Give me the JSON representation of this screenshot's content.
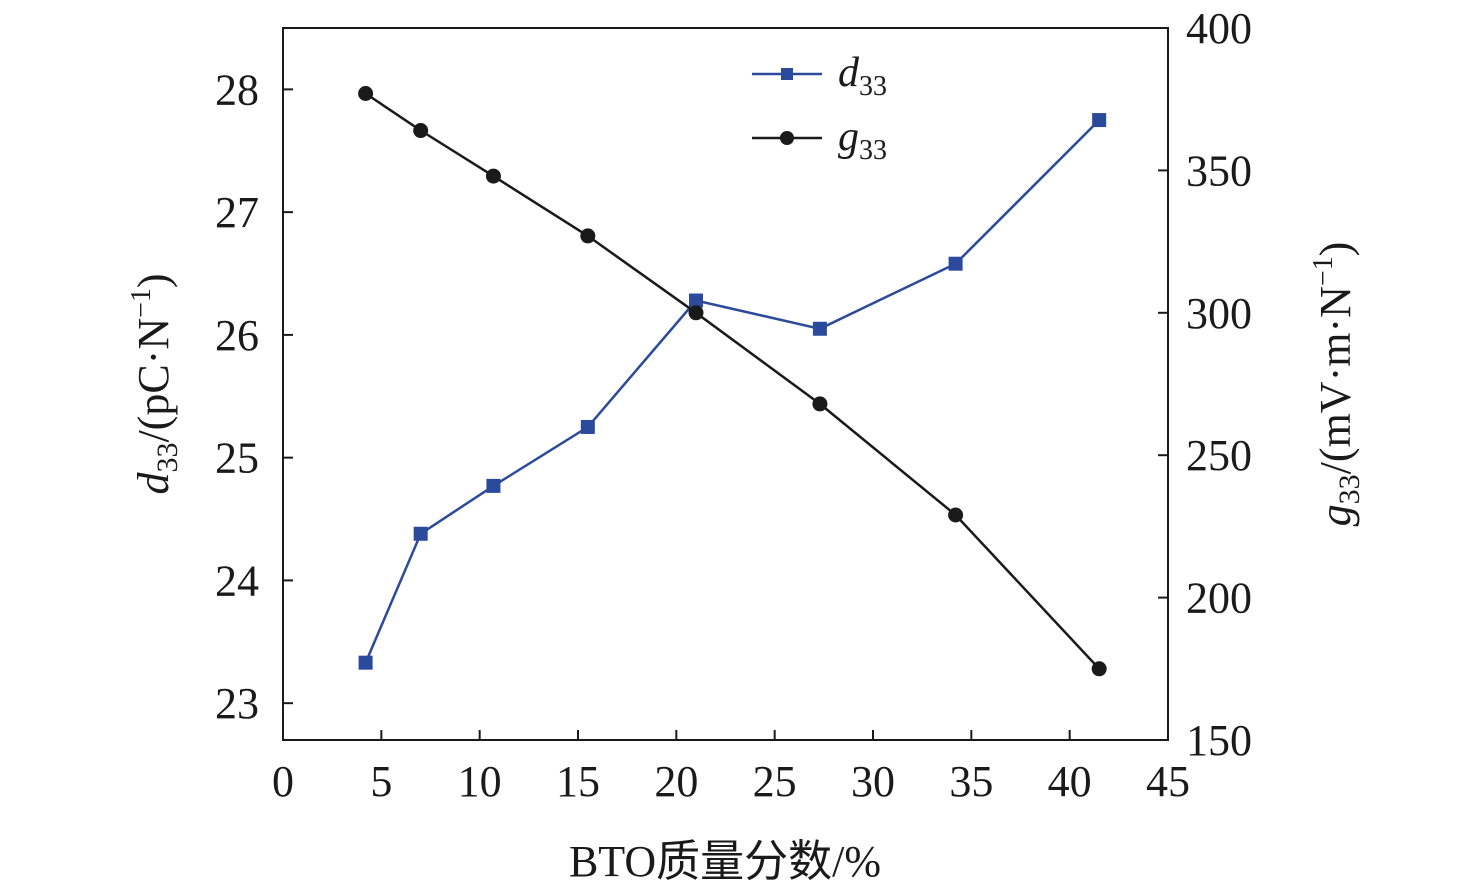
{
  "chart_data": {
    "type": "line",
    "xlabel": "BTO质量分数/%",
    "xlim": [
      0,
      45
    ],
    "xticks": [
      0,
      5,
      10,
      15,
      20,
      25,
      30,
      35,
      40,
      45
    ],
    "y_left": {
      "label_main": "d",
      "label_sub": "33",
      "label_rest": "/(pC·N",
      "label_sup": "−1",
      "label_close": ")",
      "ylim": [
        22.7,
        28.5
      ],
      "ticks": [
        23,
        24,
        25,
        26,
        27,
        28
      ]
    },
    "y_right": {
      "label_main": "g",
      "label_sub": "33",
      "label_rest": "/(mV·m·N",
      "label_sup": "−1",
      "label_close": ")",
      "ylim": [
        150,
        400
      ],
      "ticks": [
        150,
        200,
        250,
        300,
        350,
        400
      ]
    },
    "legend_position": "top-center",
    "series": [
      {
        "name_main": "d",
        "name_sub": "33",
        "axis": "left",
        "color": "#2b4a9c",
        "marker": "square",
        "x": [
          4.2,
          7.0,
          10.7,
          15.5,
          21.0,
          27.3,
          34.2,
          41.5
        ],
        "values": [
          23.33,
          24.38,
          24.77,
          25.25,
          26.28,
          26.05,
          26.58,
          27.75
        ]
      },
      {
        "name_main": "g",
        "name_sub": "33",
        "axis": "right",
        "color": "#1a1a1a",
        "marker": "circle",
        "x": [
          4.2,
          7.0,
          10.7,
          15.5,
          21.0,
          27.3,
          34.2,
          41.5
        ],
        "values": [
          377,
          364,
          348,
          327,
          300,
          268,
          229,
          175
        ]
      }
    ]
  }
}
